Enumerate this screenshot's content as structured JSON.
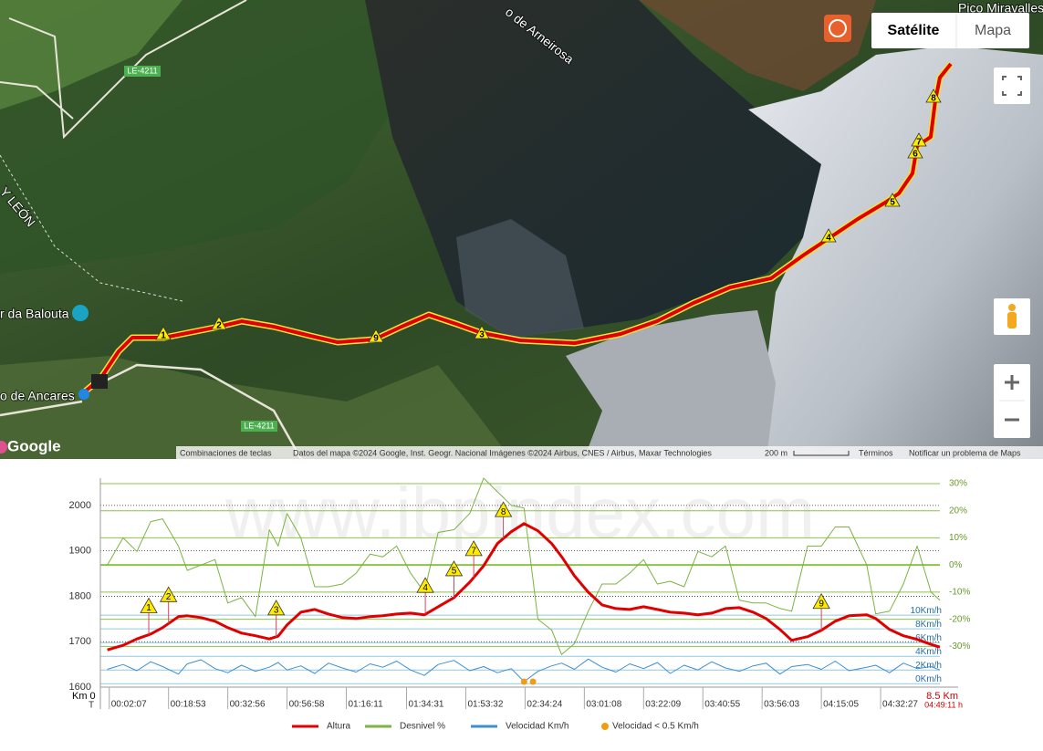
{
  "map": {
    "buttons": {
      "satellite": "Satélite",
      "map": "Mapa"
    },
    "place_labels": [
      "Pico Miravalles",
      "o de Arneirosa",
      "Y LEÓN",
      "r da Balouta",
      "o de Ancares"
    ],
    "road_labels": [
      "LE-4211",
      "LE-4211"
    ],
    "waypoints": [
      "1",
      "2",
      "9",
      "3",
      "4",
      "5",
      "6",
      "7",
      "8"
    ],
    "logo": "Google",
    "footer": [
      "Combinaciones de teclas",
      "Datos del mapa ©2024 Google, Inst. Geogr. Nacional Imágenes ©2024 Airbus, CNES / Airbus, Maxar Technologies",
      "200 m",
      "Términos",
      "Notificar un problema de Maps"
    ]
  },
  "chart_data": {
    "type": "line",
    "watermark": "www.ibpindex.com",
    "x_start_label": "Km 0",
    "time_label": "T",
    "x_end_label": "8.5 Km",
    "time_end_label": "04:49:11 h",
    "xlim": [
      0,
      8.5
    ],
    "xticks": [
      {
        "value": 0.09,
        "label": "00:02:07"
      },
      {
        "value": 0.69,
        "label": "00:18:53"
      },
      {
        "value": 1.29,
        "label": "00:32:56"
      },
      {
        "value": 1.89,
        "label": "00:56:58"
      },
      {
        "value": 2.49,
        "label": "01:16:11"
      },
      {
        "value": 3.1,
        "label": "01:34:31"
      },
      {
        "value": 3.7,
        "label": "01:53:32"
      },
      {
        "value": 4.3,
        "label": "02:34:24"
      },
      {
        "value": 4.9,
        "label": "03:01:08"
      },
      {
        "value": 5.5,
        "label": "03:22:09"
      },
      {
        "value": 6.1,
        "label": "03:40:55"
      },
      {
        "value": 6.7,
        "label": "03:56:03"
      },
      {
        "value": 7.3,
        "label": "04:15:05"
      },
      {
        "value": 7.9,
        "label": "04:32:27"
      }
    ],
    "ylim": [
      1600,
      2060
    ],
    "yticks": [
      1600,
      1700,
      1800,
      1900,
      2000
    ],
    "y2lim": [
      -45,
      32
    ],
    "y2ticks": [
      {
        "value": 30,
        "label": "30%"
      },
      {
        "value": 20,
        "label": "20%"
      },
      {
        "value": 10,
        "label": "10%"
      },
      {
        "value": 0,
        "label": "0%"
      },
      {
        "value": -10,
        "label": "-10%"
      },
      {
        "value": -20,
        "label": "-20%"
      },
      {
        "value": -30,
        "label": "-30%"
      }
    ],
    "y3lim": [
      -0.5,
      30
    ],
    "y3ticks": [
      {
        "value": 10,
        "label": "10Km/h"
      },
      {
        "value": 8,
        "label": "8Km/h"
      },
      {
        "value": 6,
        "label": "6Km/h"
      },
      {
        "value": 4,
        "label": "4Km/h"
      },
      {
        "value": 2,
        "label": "2Km/h"
      },
      {
        "value": 0,
        "label": "0Km/h"
      }
    ],
    "x": [
      0.07,
      0.23,
      0.37,
      0.51,
      0.63,
      0.79,
      0.88,
      1.02,
      1.16,
      1.29,
      1.43,
      1.57,
      1.71,
      1.8,
      1.89,
      2.03,
      2.17,
      2.31,
      2.45,
      2.59,
      2.73,
      2.86,
      3.0,
      3.14,
      3.28,
      3.42,
      3.58,
      3.74,
      3.88,
      4.02,
      4.16,
      4.29,
      4.43,
      4.57,
      4.67,
      4.8,
      4.94,
      5.08,
      5.22,
      5.36,
      5.5,
      5.64,
      5.77,
      5.91,
      6.05,
      6.19,
      6.33,
      6.47,
      6.61,
      6.74,
      6.88,
      7.0,
      7.16,
      7.3,
      7.44,
      7.58,
      7.76,
      7.85,
      7.99,
      8.13,
      8.27,
      8.41,
      8.5
    ],
    "series": [
      {
        "name": "Desnivel %",
        "color": "#7cb342",
        "axis": "y2",
        "values": [
          0,
          10,
          5,
          16,
          17,
          7,
          -2,
          0,
          2,
          -14,
          -12,
          -19,
          13,
          7,
          19,
          10,
          -8,
          -8,
          -7,
          -3,
          4,
          3,
          7,
          -3,
          -10,
          12,
          13,
          19,
          32,
          27,
          22,
          21,
          -20,
          -24,
          -33,
          -29,
          -17,
          -7,
          -7,
          -3,
          2,
          -7,
          -6,
          -8,
          5,
          3,
          7,
          -13,
          -14,
          -14,
          -16,
          -17,
          7,
          7,
          14,
          14,
          0,
          -18,
          -17,
          -7,
          7,
          -10,
          -13
        ]
      },
      {
        "name": "Velocidad Km/h",
        "color": "#3d8fd1",
        "axis": "y3",
        "values": [
          2.1,
          2.8,
          1.9,
          3.2,
          2.5,
          1.4,
          2.9,
          3.5,
          2.2,
          1.6,
          2.7,
          1.8,
          2.4,
          3.1,
          2.0,
          2.6,
          1.5,
          3.0,
          2.3,
          1.7,
          2.9,
          2.4,
          3.3,
          2.0,
          1.2,
          2.8,
          3.4,
          1.9,
          2.5,
          1.6,
          2.2,
          0.3,
          1.8,
          2.6,
          3.0,
          2.1,
          3.6,
          2.4,
          1.7,
          2.9,
          2.2,
          3.1,
          1.5,
          2.7,
          2.0,
          3.2,
          2.3,
          1.8,
          2.6,
          3.0,
          1.4,
          2.5,
          2.8,
          2.1,
          3.3,
          1.9,
          2.4,
          2.7,
          1.6,
          3.0,
          2.2,
          2.5,
          2.0
        ]
      },
      {
        "name": "Altura",
        "color": "#e00000",
        "axis": "y",
        "values": [
          1682,
          1692,
          1706,
          1717,
          1731,
          1755,
          1757,
          1753,
          1745,
          1731,
          1719,
          1713,
          1706,
          1712,
          1737,
          1765,
          1771,
          1761,
          1753,
          1751,
          1755,
          1757,
          1761,
          1763,
          1759,
          1777,
          1797,
          1831,
          1867,
          1916,
          1942,
          1960,
          1944,
          1916,
          1887,
          1845,
          1809,
          1781,
          1773,
          1771,
          1777,
          1771,
          1765,
          1763,
          1759,
          1763,
          1773,
          1775,
          1765,
          1751,
          1727,
          1703,
          1711,
          1725,
          1745,
          1757,
          1759,
          1751,
          1727,
          1713,
          1705,
          1694,
          1688
        ]
      },
      {
        "name": "Velocidad < 0.5 Km/h",
        "color": "#f39c12",
        "axis": "y3",
        "type": "scatter",
        "x": [
          4.29,
          4.38
        ],
        "values": [
          0.3,
          0.3
        ]
      }
    ],
    "legend_order": [
      2,
      0,
      1,
      3
    ],
    "waypoints": [
      {
        "label": "1",
        "x": 0.49
      },
      {
        "label": "2",
        "x": 0.69
      },
      {
        "label": "3",
        "x": 1.78
      },
      {
        "label": "4",
        "x": 3.29
      },
      {
        "label": "5",
        "x": 3.58
      },
      {
        "label": "7",
        "x": 3.78
      },
      {
        "label": "8",
        "x": 4.08
      },
      {
        "label": "9",
        "x": 7.3
      }
    ]
  }
}
